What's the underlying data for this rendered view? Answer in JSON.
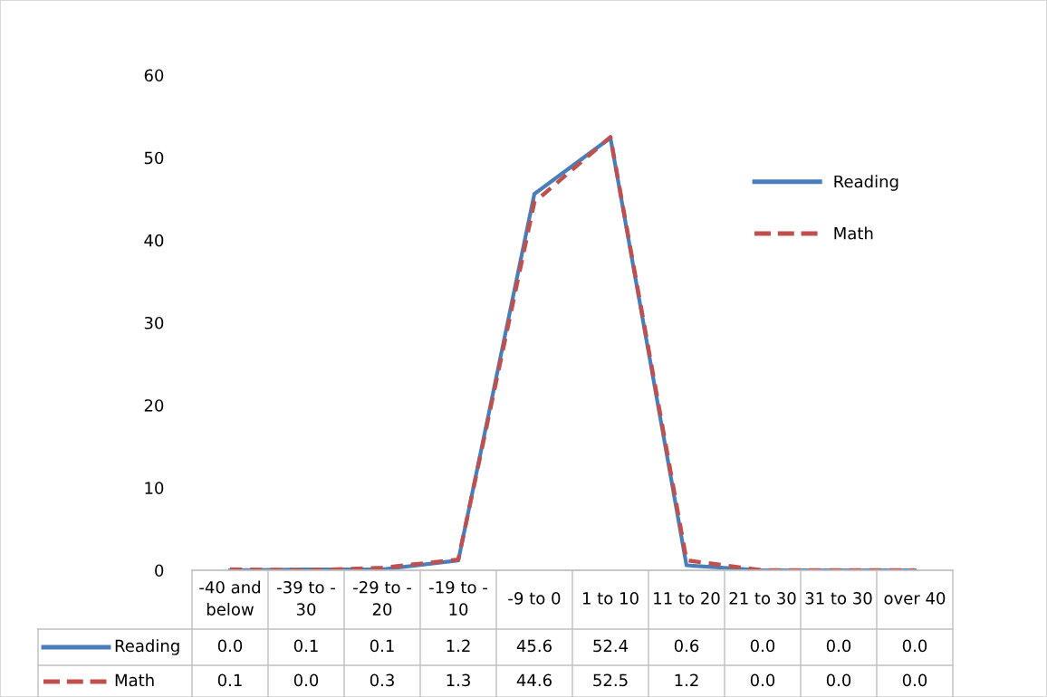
{
  "chart_data": {
    "type": "line",
    "categories": [
      "-40 and below",
      "-39 to -30",
      "-29 to -20",
      "-19 to -10",
      "-9 to 0",
      "1 to 10",
      "11 to 20",
      "21 to 30",
      "31 to 30",
      "over 40"
    ],
    "series": [
      {
        "name": "Reading",
        "color": "#4a7ebb",
        "line_style": "solid",
        "values": [
          0.0,
          0.1,
          0.1,
          1.2,
          45.6,
          52.4,
          0.6,
          0.0,
          0.0,
          0.0
        ],
        "value_labels": [
          "0.0",
          "0.1",
          "0.1",
          "1.2",
          "45.6",
          "52.4",
          "0.6",
          "0.0",
          "0.0",
          "0.0"
        ]
      },
      {
        "name": "Math",
        "color": "#c0504d",
        "line_style": "dashed",
        "values": [
          0.1,
          0.0,
          0.3,
          1.3,
          44.6,
          52.5,
          1.2,
          0.0,
          0.0,
          0.0
        ],
        "value_labels": [
          "0.1",
          "0.0",
          "0.3",
          "1.3",
          "44.6",
          "52.5",
          "1.2",
          "0.0",
          "0.0",
          "0.0"
        ]
      }
    ],
    "ylim": [
      0,
      60
    ],
    "yticks": [
      0,
      10,
      20,
      30,
      40,
      50,
      60
    ],
    "legend": "right",
    "grid": false,
    "marker": "none"
  }
}
